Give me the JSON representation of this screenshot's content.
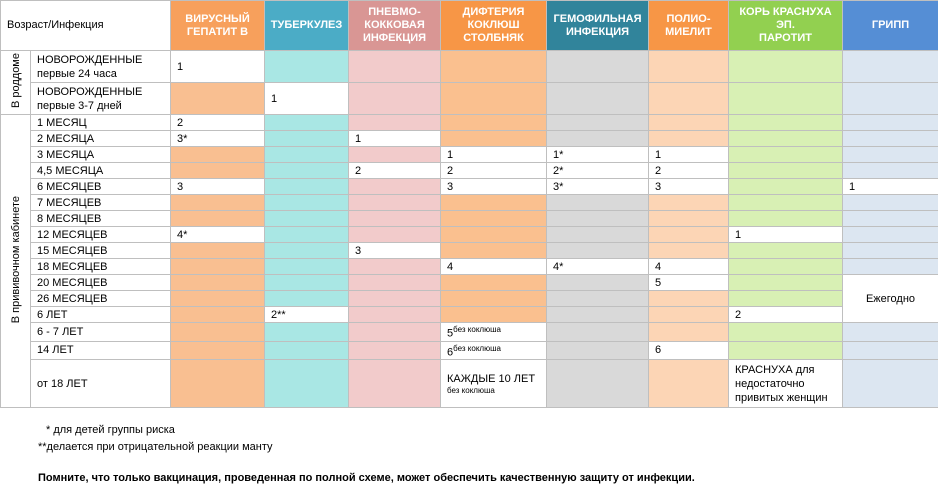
{
  "header": {
    "corner": "Возраст/Инфекция"
  },
  "columns": [
    {
      "label": "ВИРУСНЫЙ\nГЕПАТИТ В",
      "header_color": "#f7a05c",
      "cell_color": "#f9bf91"
    },
    {
      "label": "ТУБЕРКУЛЕЗ",
      "header_color": "#4bacc6",
      "cell_color": "#a9e7e4"
    },
    {
      "label": "ПНЕВМО-\nКОККОВАЯ\nИНФЕКЦИЯ",
      "header_color": "#d99694",
      "cell_color": "#f2cbcb"
    },
    {
      "label": "ДИФТЕРИЯ\nКОКЛЮШ\nСТОЛБНЯК",
      "header_color": "#f79646",
      "cell_color": "#fac08f"
    },
    {
      "label": "ГЕМОФИЛЬНАЯ\nИНФЕКЦИЯ",
      "header_color": "#31849b",
      "cell_color": "#d9d9d9"
    },
    {
      "label": "ПОЛИО-\nМИЕЛИТ",
      "header_color": "#f79646",
      "cell_color": "#fcd5b5"
    },
    {
      "label": "КОРЬ КРАСНУХА ЭП.\nПАРОТИТ",
      "header_color": "#92d050",
      "cell_color": "#d8f0b4"
    },
    {
      "label": "ГРИПП",
      "header_color": "#558ed5",
      "cell_color": "#dce6f1"
    }
  ],
  "groups": [
    {
      "label": "В роддоме"
    },
    {
      "label": "В прививочном кабинете"
    }
  ],
  "rows": [
    {
      "age": "НОВОРОЖДЕННЫЕ\nпервые 24 часа",
      "cells": [
        "1",
        null,
        null,
        null,
        null,
        null,
        null,
        null
      ]
    },
    {
      "age": "НОВОРОЖДЕННЫЕ\nпервые 3-7 дней",
      "cells": [
        null,
        "1",
        null,
        null,
        null,
        null,
        null,
        null
      ]
    },
    {
      "age": "1 МЕСЯЦ",
      "cells": [
        "2",
        null,
        null,
        null,
        null,
        null,
        null,
        null
      ]
    },
    {
      "age": "2 МЕСЯЦА",
      "cells": [
        "3*",
        null,
        "1",
        null,
        null,
        null,
        null,
        null
      ]
    },
    {
      "age": "3 МЕСЯЦА",
      "cells": [
        null,
        null,
        null,
        "1",
        "1*",
        "1",
        null,
        null
      ]
    },
    {
      "age": "4,5 МЕСЯЦА",
      "cells": [
        null,
        null,
        "2",
        "2",
        "2*",
        "2",
        null,
        null
      ]
    },
    {
      "age": "6 МЕСЯЦЕВ",
      "cells": [
        "3",
        null,
        null,
        "3",
        "3*",
        "3",
        null,
        "1"
      ]
    },
    {
      "age": "7 МЕСЯЦЕВ",
      "cells": [
        null,
        null,
        null,
        null,
        null,
        null,
        null,
        null
      ]
    },
    {
      "age": "8 МЕСЯЦЕВ",
      "cells": [
        null,
        null,
        null,
        null,
        null,
        null,
        null,
        null
      ]
    },
    {
      "age": "12 МЕСЯЦЕВ",
      "cells": [
        "4*",
        null,
        null,
        null,
        null,
        null,
        "1",
        null
      ]
    },
    {
      "age": "15 МЕСЯЦЕВ",
      "cells": [
        null,
        null,
        "3",
        null,
        null,
        null,
        null,
        null
      ]
    },
    {
      "age": "18 МЕСЯЦЕВ",
      "cells": [
        null,
        null,
        null,
        "4",
        "4*",
        "4",
        null,
        null
      ]
    },
    {
      "age": "20 МЕСЯЦЕВ",
      "cells": [
        null,
        null,
        null,
        null,
        null,
        "5",
        null,
        "Ежегодно"
      ]
    },
    {
      "age": "26 МЕСЯЦЕВ",
      "cells": [
        null,
        null,
        null,
        null,
        null,
        null,
        null,
        null
      ]
    },
    {
      "age": "6 ЛЕТ",
      "cells": [
        null,
        "2**",
        null,
        null,
        null,
        null,
        "2",
        null
      ]
    },
    {
      "age": "6 - 7 ЛЕТ",
      "cells": [
        null,
        null,
        null,
        {
          "text": "5",
          "note": "без коклюша"
        },
        null,
        null,
        null,
        null
      ]
    },
    {
      "age": "14 ЛЕТ",
      "cells": [
        null,
        null,
        null,
        {
          "text": "6",
          "note": "без коклюша"
        },
        null,
        "6",
        null,
        null
      ]
    },
    {
      "age": "от 18 ЛЕТ",
      "cells": [
        null,
        null,
        null,
        {
          "text": "КАЖДЫЕ 10 ЛЕТ",
          "note": "без коклюша"
        },
        null,
        null,
        "КРАСНУХА для\nнедостаточно\nпривитых женщин",
        null
      ]
    }
  ],
  "footnotes": [
    "* для детей группы риска",
    "**делается при отрицательной реакции манту"
  ],
  "reminder": "Помните, что только вакцинация, проведенная по полной схеме, может обеспечить качественную защиту от инфекции."
}
